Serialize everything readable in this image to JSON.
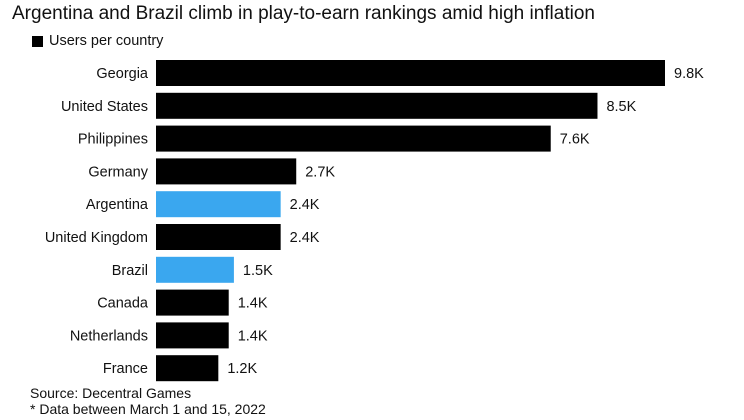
{
  "title": "Argentina and Brazil climb in play-to-earn rankings amid high inflation",
  "legend": {
    "label": "Users per country"
  },
  "source": "Source: Decentral Games",
  "note": "* Data between March 1 and 15, 2022",
  "colors": {
    "default": "#000000",
    "highlight": "#3aa7ef"
  },
  "chart_data": {
    "type": "bar",
    "orientation": "horizontal",
    "categories": [
      "Georgia",
      "United States",
      "Philippines",
      "Germany",
      "Argentina",
      "United Kingdom",
      "Brazil",
      "Canada",
      "Netherlands",
      "France"
    ],
    "series": [
      {
        "name": "Users per country",
        "values": [
          9800,
          8500,
          7600,
          2700,
          2400,
          2400,
          1500,
          1400,
          1400,
          1200
        ]
      }
    ],
    "value_labels": [
      "9.8K",
      "8.5K",
      "7.6K",
      "2.7K",
      "2.4K",
      "2.4K",
      "1.5K",
      "1.4K",
      "1.4K",
      "1.2K"
    ],
    "highlighted": [
      "Argentina",
      "Brazil"
    ],
    "xlim": [
      0,
      9800
    ],
    "grid": false,
    "legend_position": "top-left"
  }
}
